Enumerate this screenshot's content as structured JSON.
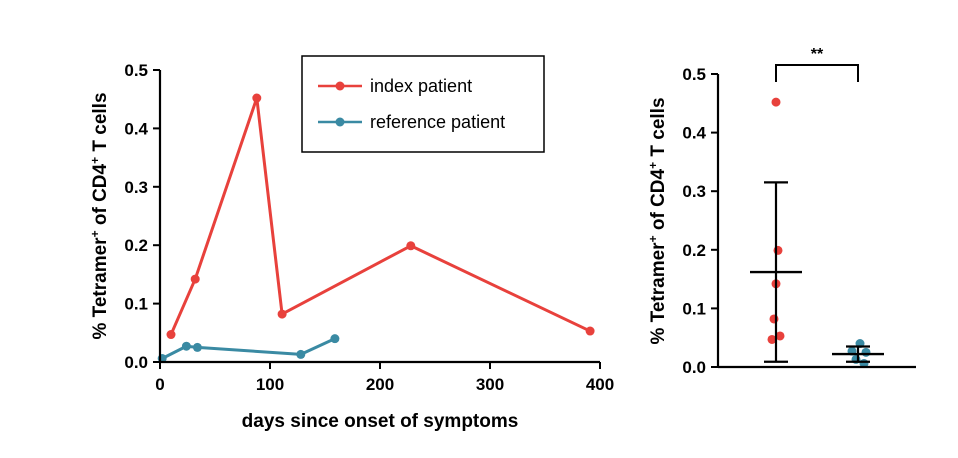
{
  "chart_data": [
    {
      "type": "line",
      "xlabel": "days since onset of symptoms",
      "ylabel_parts": [
        "% Tetramer",
        "+",
        " of CD4",
        "+",
        " T cells"
      ],
      "xlim": [
        0,
        400
      ],
      "ylim": [
        0,
        0.5
      ],
      "x_ticks": [
        0,
        100,
        200,
        300,
        400
      ],
      "y_ticks": [
        0.0,
        0.1,
        0.2,
        0.3,
        0.4,
        0.5
      ],
      "x_tick_labels": [
        "0",
        "100",
        "200",
        "300",
        "400"
      ],
      "y_tick_labels": [
        "0.0",
        "0.1",
        "0.2",
        "0.3",
        "0.4",
        "0.5"
      ],
      "legend_position": "top-center",
      "series": [
        {
          "name": "index patient",
          "color": "#e8413c",
          "points": [
            [
              10,
              0.047
            ],
            [
              32,
              0.142
            ],
            [
              88,
              0.452
            ],
            [
              111,
              0.082
            ],
            [
              228,
              0.199
            ],
            [
              391,
              0.053
            ]
          ]
        },
        {
          "name": "reference patient",
          "color": "#3a8aa3",
          "points": [
            [
              2,
              0.006
            ],
            [
              24,
              0.027
            ],
            [
              34,
              0.025
            ],
            [
              128,
              0.013
            ],
            [
              159,
              0.04
            ]
          ]
        }
      ]
    },
    {
      "type": "scatter",
      "ylabel_parts": [
        "% Tetramer",
        "+",
        " of CD4",
        "+",
        " T cells"
      ],
      "ylim": [
        0,
        0.5
      ],
      "y_ticks": [
        0.0,
        0.1,
        0.2,
        0.3,
        0.4,
        0.5
      ],
      "y_tick_labels": [
        "0.0",
        "0.1",
        "0.2",
        "0.3",
        "0.4",
        "0.5"
      ],
      "significance": "**",
      "groups": [
        {
          "color": "#e8413c",
          "values": [
            0.452,
            0.199,
            0.142,
            0.082,
            0.053,
            0.047
          ],
          "mean": 0.162,
          "error_upper": 0.315,
          "error_lower": 0.009
        },
        {
          "color": "#3a8aa3",
          "values": [
            0.04,
            0.027,
            0.025,
            0.013,
            0.006
          ],
          "mean": 0.022,
          "error_upper": 0.035,
          "error_lower": 0.009
        }
      ]
    }
  ]
}
